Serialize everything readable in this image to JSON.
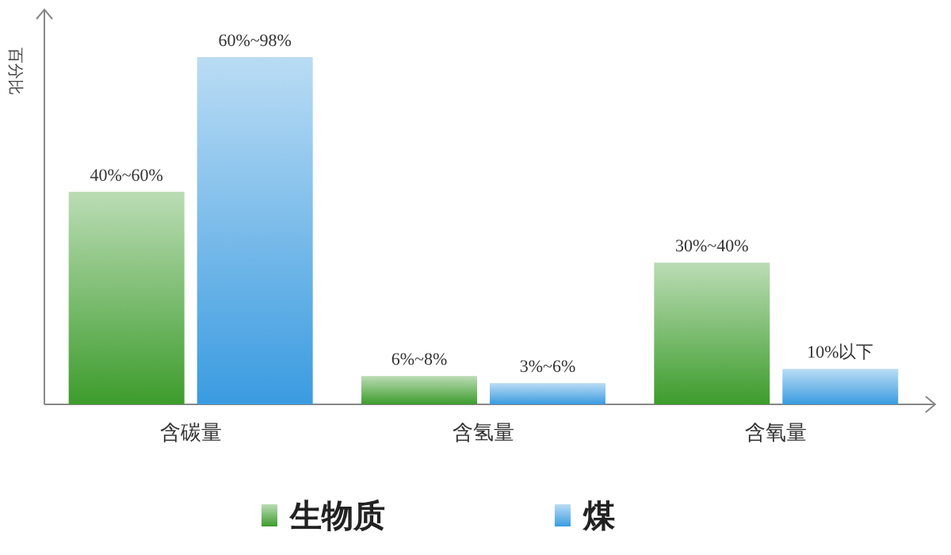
{
  "chart_data": {
    "type": "bar",
    "ylabel": "百分比",
    "categories": [
      "含碳量",
      "含氢量",
      "含氧量"
    ],
    "series": [
      {
        "name": "生物质",
        "color": "#3d9c2c",
        "values": [
          60,
          8,
          40
        ],
        "value_labels": [
          "40%~60%",
          "6%~8%",
          "30%~40%"
        ]
      },
      {
        "name": "煤",
        "color": "#3a9be0",
        "values": [
          98,
          6,
          10
        ],
        "value_labels": [
          "60%~98%",
          "3%~6%",
          "10%以下"
        ]
      }
    ],
    "legend": "bottom"
  }
}
